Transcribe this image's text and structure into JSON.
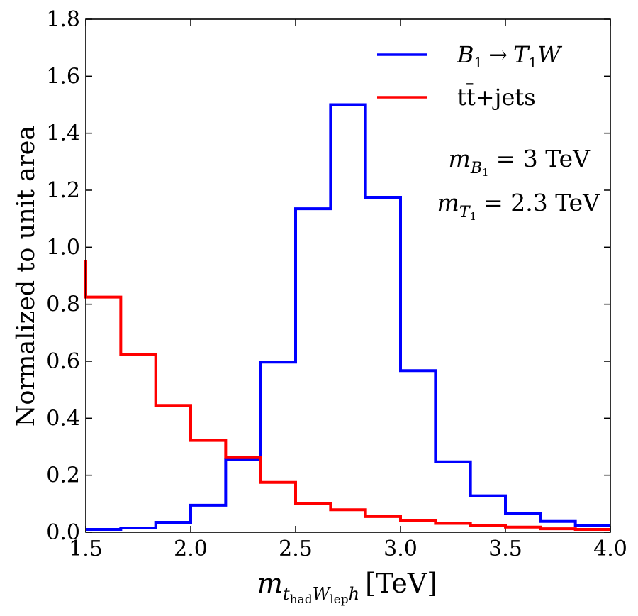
{
  "chart_data": {
    "type": "histogram-step",
    "ylabel": "Normalized to unit area",
    "xlabel": {
      "main": "m",
      "sub1": "t",
      "sub1sub": "had",
      "sub2": "W",
      "sub2sub": "lep",
      "sub3": "h",
      "unit": "[TeV]"
    },
    "xlim": [
      1.5,
      4.0
    ],
    "ylim": [
      0.0,
      1.8
    ],
    "xticks": [
      1.5,
      2.0,
      2.5,
      3.0,
      3.5,
      4.0
    ],
    "xtick_labels": [
      "1.5",
      "2.0",
      "2.5",
      "3.0",
      "3.5",
      "4.0"
    ],
    "yticks": [
      0.0,
      0.2,
      0.4,
      0.6,
      0.8,
      1.0,
      1.2,
      1.4,
      1.6,
      1.8
    ],
    "ytick_labels": [
      "0.0",
      "0.2",
      "0.4",
      "0.6",
      "0.8",
      "1.0",
      "1.2",
      "1.4",
      "1.6",
      "1.8"
    ],
    "bin_edges": [
      1.5,
      1.6667,
      1.8333,
      2.0,
      2.1667,
      2.3333,
      2.5,
      2.6667,
      2.8333,
      3.0,
      3.1667,
      3.3333,
      3.5,
      3.6667,
      3.8333,
      4.0
    ],
    "series": [
      {
        "name": "B1 → T1W",
        "legend": {
          "base": "B",
          "base_sub": "1",
          "arrow": "→",
          "target": "T",
          "target_sub": "1",
          "tail": "W"
        },
        "color": "#0000ff",
        "values": [
          0.01,
          0.015,
          0.035,
          0.095,
          0.255,
          0.597,
          1.135,
          1.5,
          1.175,
          0.567,
          0.247,
          0.128,
          0.067,
          0.038,
          0.024
        ]
      },
      {
        "name": "tt̄+jets",
        "legend": {
          "text": "tt̄+jets"
        },
        "color": "#ff0000",
        "values": [
          0.825,
          0.625,
          0.445,
          0.322,
          0.262,
          0.175,
          0.102,
          0.079,
          0.055,
          0.04,
          0.031,
          0.025,
          0.018,
          0.012,
          0.01
        ],
        "leading_value": 0.955
      }
    ],
    "legend_position": "top-right",
    "annotations": [
      {
        "symbol": "m",
        "sub": "B",
        "subsub": "1",
        "eq": "= 3 TeV"
      },
      {
        "symbol": "m",
        "sub": "T",
        "subsub": "1",
        "eq": "= 2.3 TeV"
      }
    ]
  }
}
